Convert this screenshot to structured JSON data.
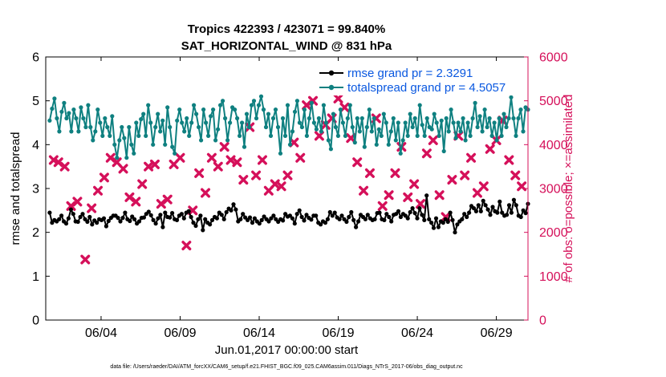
{
  "chart_data": {
    "type": "line",
    "title": "Tropics 422393 / 423071 = 99.840%",
    "subtitle": "SAT_HORIZONTAL_WIND @ 831 hPa",
    "xlabel": "Jun.01,2017 00:00:00 start",
    "ylabel_left": "rmse and totalspread",
    "ylabel_right": "# of obs: o=possible; ×=assimilated",
    "x_range_days": [
      0.5,
      31.0
    ],
    "ylim_left": [
      0,
      6
    ],
    "ylim_right": [
      0,
      6000
    ],
    "yticks_left": [
      "0",
      "1",
      "2",
      "3",
      "4",
      "5",
      "6"
    ],
    "yticks_right": [
      "0",
      "1000",
      "2000",
      "3000",
      "4000",
      "5000",
      "6000"
    ],
    "xticks": [
      {
        "day": 4,
        "label": "06/04"
      },
      {
        "day": 9,
        "label": "06/09"
      },
      {
        "day": 14,
        "label": "06/14"
      },
      {
        "day": 19,
        "label": "06/19"
      },
      {
        "day": 24,
        "label": "06/24"
      },
      {
        "day": 29,
        "label": "06/29"
      }
    ],
    "series": [
      {
        "name": "rmse grand pr = 2.3291",
        "color": "#000000",
        "values": [
          2.45,
          2.22,
          2.28,
          2.25,
          2.3,
          2.38,
          2.25,
          2.2,
          2.32,
          2.52,
          2.42,
          2.25,
          2.24,
          2.35,
          2.42,
          2.3,
          2.24,
          2.35,
          2.18,
          2.27,
          2.22,
          2.3,
          2.28,
          2.32,
          2.14,
          2.26,
          2.33,
          2.38,
          2.38,
          2.33,
          2.25,
          2.33,
          2.45,
          2.3,
          2.26,
          2.36,
          2.3,
          2.2,
          2.25,
          2.33,
          2.34,
          2.42,
          2.47,
          2.39,
          2.28,
          2.2,
          2.32,
          2.4,
          2.12,
          2.45,
          2.35,
          2.34,
          2.44,
          2.3,
          2.28,
          2.38,
          2.42,
          2.32,
          2.45,
          2.48,
          2.35,
          2.22,
          2.15,
          2.3,
          2.38,
          2.05,
          2.3,
          2.22,
          2.18,
          2.28,
          2.35,
          2.32,
          2.45,
          2.4,
          2.3,
          2.46,
          2.54,
          2.5,
          2.64,
          2.52,
          2.25,
          2.3,
          2.42,
          2.34,
          2.28,
          2.34,
          2.22,
          2.32,
          2.25,
          2.2,
          2.28,
          2.36,
          2.3,
          2.25,
          2.32,
          2.38,
          2.3,
          2.24,
          2.3,
          2.27,
          2.42,
          2.36,
          2.38,
          2.32,
          2.2,
          2.42,
          2.5,
          2.35,
          2.27,
          2.4,
          2.33,
          2.29,
          2.38,
          2.38,
          2.22,
          2.18,
          2.25,
          2.22,
          2.3,
          2.46,
          2.38,
          2.45,
          2.34,
          2.3,
          2.38,
          2.3,
          2.24,
          2.35,
          2.46,
          2.28,
          2.12,
          2.25,
          2.4,
          2.35,
          2.3,
          2.4,
          2.32,
          2.28,
          2.3,
          2.44,
          2.45,
          2.3,
          2.28,
          2.42,
          2.35,
          2.25,
          2.4,
          2.42,
          2.48,
          2.35,
          2.42,
          2.38,
          2.32,
          2.46,
          2.55,
          2.44,
          2.32,
          2.55,
          2.4,
          2.28,
          2.84,
          2.3,
          2.22,
          2.1,
          2.32,
          2.12,
          2.25,
          2.22,
          2.3,
          2.24,
          2.45,
          2.28,
          2.0,
          2.18,
          2.25,
          2.3,
          2.42,
          2.35,
          2.45,
          2.6,
          2.55,
          2.48,
          2.62,
          2.48,
          2.72,
          2.62,
          2.52,
          2.4,
          2.58,
          2.48,
          2.45,
          2.7,
          2.45,
          2.38,
          2.4,
          2.62,
          2.45,
          2.74,
          2.62,
          2.38,
          2.35,
          2.5,
          2.44,
          2.65
        ]
      },
      {
        "name": "totalspread grand pr = 4.5057",
        "color": "#0f8080",
        "values": [
          4.55,
          4.82,
          5.05,
          4.6,
          4.3,
          4.75,
          4.95,
          4.6,
          4.72,
          4.3,
          4.8,
          4.6,
          4.3,
          4.85,
          4.6,
          4.4,
          4.9,
          4.4,
          4.1,
          4.3,
          4.8,
          4.5,
          4.2,
          4.6,
          4.4,
          4.2,
          4.65,
          4.0,
          3.7,
          4.1,
          4.4,
          4.15,
          3.7,
          4.4,
          4.0,
          3.8,
          4.5,
          4.2,
          4.58,
          4.7,
          4.2,
          4.9,
          4.5,
          4.0,
          4.4,
          4.7,
          4.3,
          4.55,
          4.0,
          4.85,
          4.4,
          3.95,
          3.8,
          4.55,
          4.8,
          4.5,
          4.3,
          4.6,
          4.2,
          4.5,
          4.9,
          4.7,
          4.4,
          4.1,
          4.8,
          4.5,
          4.2,
          4.65,
          4.8,
          4.1,
          4.35,
          4.9,
          5.0,
          4.6,
          4.1,
          4.5,
          4.85,
          4.8,
          4.6,
          4.2,
          4.5,
          3.95,
          4.7,
          4.4,
          4.9,
          5.0,
          4.6,
          4.9,
          5.1,
          4.8,
          4.4,
          4.7,
          4.2,
          4.6,
          4.8,
          4.4,
          3.8,
          4.6,
          4.2,
          4.9,
          4.0,
          4.3,
          4.75,
          5.0,
          4.5,
          4.4,
          4.8,
          4.2,
          4.6,
          4.95,
          4.5,
          4.35,
          4.6,
          4.3,
          4.9,
          4.5,
          4.1,
          3.9,
          4.7,
          4.4,
          4.2,
          4.8,
          4.5,
          4.2,
          4.6,
          4.9,
          4.4,
          4.05,
          4.6,
          4.3,
          4.6,
          3.95,
          4.4,
          4.8,
          4.3,
          4.6,
          4.0,
          4.35,
          4.2,
          4.7,
          4.5,
          4.0,
          4.3,
          4.6,
          4.1,
          4.5,
          3.8,
          4.1,
          4.5,
          4.2,
          4.7,
          4.4,
          4.6,
          4.2,
          4.9,
          4.45,
          4.2,
          4.6,
          4.4,
          4.35,
          4.7,
          4.5,
          4.2,
          4.55,
          3.85,
          4.6,
          4.3,
          4.8,
          4.5,
          4.15,
          4.5,
          4.3,
          4.6,
          4.1,
          4.5,
          4.2,
          4.6,
          4.95,
          4.4,
          4.65,
          4.3,
          4.8,
          4.4,
          4.6,
          4.2,
          4.5,
          4.1,
          4.6,
          4.2,
          4.7,
          4.4,
          4.6,
          5.08,
          4.6,
          4.2,
          4.6,
          4.8,
          4.3,
          4.85,
          4.8
        ]
      }
    ],
    "scatter_assimilated": {
      "name": "# assimilated",
      "color": "#d5105a",
      "points": [
        [
          1,
          3650
        ],
        [
          1.3,
          3600
        ],
        [
          1.7,
          3500
        ],
        [
          2.1,
          2600
        ],
        [
          2.5,
          2700
        ],
        [
          3,
          1380
        ],
        [
          3.4,
          2550
        ],
        [
          3.8,
          2950
        ],
        [
          4.2,
          3250
        ],
        [
          4.6,
          3700
        ],
        [
          5,
          3600
        ],
        [
          5.4,
          3450
        ],
        [
          5.8,
          2800
        ],
        [
          6.2,
          2700
        ],
        [
          6.6,
          3100
        ],
        [
          7,
          3500
        ],
        [
          7.4,
          3550
        ],
        [
          7.8,
          2650
        ],
        [
          8.2,
          2750
        ],
        [
          8.6,
          3550
        ],
        [
          9,
          3700
        ],
        [
          9.4,
          1700
        ],
        [
          9.8,
          2500
        ],
        [
          10.2,
          3350
        ],
        [
          10.6,
          2900
        ],
        [
          11,
          3700
        ],
        [
          11.4,
          3500
        ],
        [
          11.8,
          3950
        ],
        [
          12.2,
          3650
        ],
        [
          12.6,
          3600
        ],
        [
          13,
          3200
        ],
        [
          13.4,
          4400
        ],
        [
          13.8,
          3300
        ],
        [
          14.2,
          3650
        ],
        [
          14.6,
          2950
        ],
        [
          15,
          3100
        ],
        [
          15.4,
          3050
        ],
        [
          15.8,
          3300
        ],
        [
          16.2,
          4050
        ],
        [
          16.6,
          3700
        ],
        [
          17,
          4900
        ],
        [
          17.4,
          5000
        ],
        [
          17.8,
          4200
        ],
        [
          18.2,
          4450
        ],
        [
          18.6,
          4600
        ],
        [
          19,
          5050
        ],
        [
          19.4,
          4850
        ],
        [
          19.8,
          4150
        ],
        [
          20.2,
          3600
        ],
        [
          20.6,
          2950
        ],
        [
          21,
          3350
        ],
        [
          21.4,
          4600
        ],
        [
          21.8,
          2600
        ],
        [
          22.2,
          2850
        ],
        [
          22.6,
          3350
        ],
        [
          23,
          3950
        ],
        [
          23.4,
          2800
        ],
        [
          23.8,
          3100
        ],
        [
          24.2,
          2650
        ],
        [
          24.6,
          3800
        ],
        [
          25,
          4100
        ],
        [
          25.4,
          2850
        ],
        [
          25.8,
          2350
        ],
        [
          26.2,
          3200
        ],
        [
          26.6,
          4200
        ],
        [
          27,
          3300
        ],
        [
          27.4,
          3700
        ],
        [
          27.8,
          2900
        ],
        [
          28.2,
          3050
        ],
        [
          28.6,
          3900
        ],
        [
          29,
          4100
        ],
        [
          29.4,
          4550
        ],
        [
          29.8,
          3650
        ],
        [
          30.2,
          3300
        ],
        [
          30.6,
          3050
        ]
      ]
    }
  },
  "legend": {
    "rmse": "rmse grand pr = 2.3291",
    "spread": "totalspread grand pr = 4.5057"
  },
  "footer": "data file: /Users/raeder/DAI/ATM_forcXX/CAM6_setup/f.e21.FHIST_BGC.f09_025.CAM6assim.011/Diags_NTrS_2017-06/obs_diag_output.nc",
  "colors": {
    "rmse": "#000000",
    "spread": "#0f8080",
    "obs": "#d5105a",
    "legend_text": "#0a58e0"
  }
}
